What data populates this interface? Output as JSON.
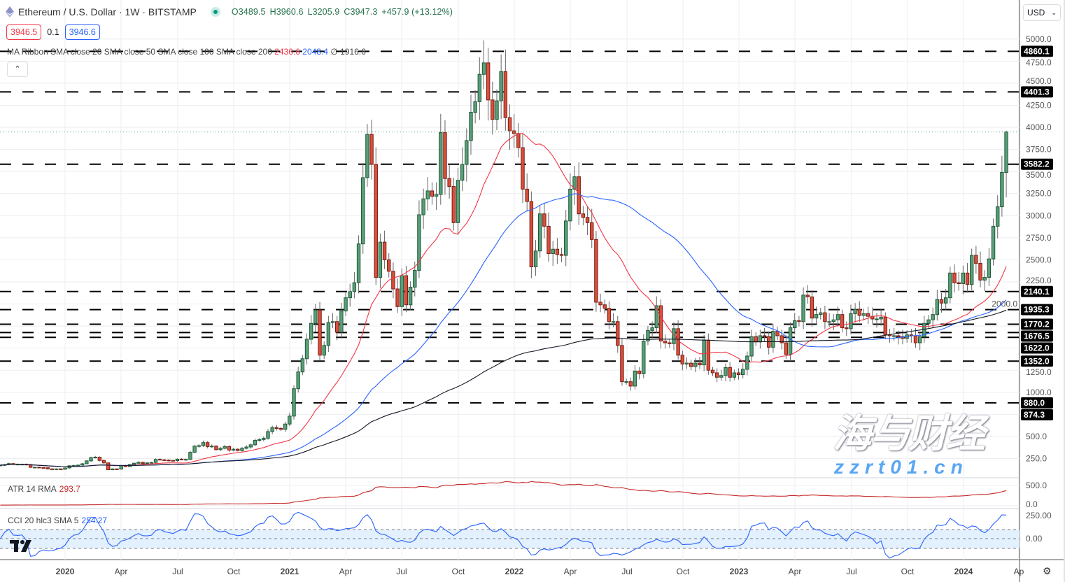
{
  "header": {
    "symbol_title": "Ethereum / U.S. Dollar · 1W · BITSTAMP",
    "open": "O3489.5",
    "high": "H3960.6",
    "low": "L3205.9",
    "close": "C3947.3",
    "change": "+457.9 (+13.12%)",
    "market_status_color": "#089981"
  },
  "quote": {
    "sell": "3946.5",
    "spread": "0.1",
    "buy": "3946.6"
  },
  "ribbon": {
    "label": "MA Ribbon SMA close 20 SMA close 50 SMA close 100 SMA close 200",
    "sma20": "2436.6",
    "sma50": "2048.4",
    "sma100": "∅",
    "sma200": "1916.6"
  },
  "currency": {
    "label": "USD",
    "icon": "chevron-down-icon"
  },
  "atr": {
    "label": "ATR 14 RMA",
    "value": "293.7"
  },
  "cci": {
    "label": "CCI 20 hlc3 SMA 5",
    "value": "254.27"
  },
  "watermark": {
    "cn": "海与财经",
    "site": "zzrt01.cn"
  },
  "colors": {
    "up": "#5b9e7a",
    "down": "#d9503c",
    "sma20": "#f23645",
    "sma50": "#2962ff",
    "sma200": "#131722",
    "atr": "#c62828",
    "cci": "#2962ff"
  },
  "chart_data": {
    "type": "candlestick",
    "interval": "1W",
    "first_week": "2019-09-23",
    "ylim": [
      0,
      5000
    ],
    "y_ticks": [
      5000,
      4750,
      4500,
      4250,
      4000,
      3750,
      3500,
      3250,
      3000,
      2750,
      2500,
      2250,
      2000,
      1250,
      1000,
      500,
      250
    ],
    "x_ticks": [
      "2020",
      "Apr",
      "Jul",
      "Oct",
      "2021",
      "Apr",
      "Jul",
      "Oct",
      "2022",
      "Apr",
      "Jul",
      "Oct",
      "2023",
      "Apr",
      "Jul",
      "Oct",
      "2024",
      "Ap"
    ],
    "levels": [
      "4860.1",
      "4401.3",
      "3582.2",
      "2140.1",
      "1935.3",
      "1770.2",
      "1676.5",
      "1622.0",
      "1352.0",
      "880.0"
    ],
    "extra_price_label": "874.3",
    "last_candle": {
      "open": 3489.5,
      "high": 3960.6,
      "low": 3205.9,
      "close": 3947.3
    },
    "closes": [
      175,
      180,
      192,
      182,
      185,
      185,
      180,
      150,
      151,
      147,
      145,
      132,
      128,
      132,
      128,
      143,
      167,
      170,
      175,
      190,
      223,
      260,
      265,
      228,
      200,
      123,
      132,
      130,
      170,
      158,
      182,
      196,
      207,
      192,
      200,
      205,
      240,
      235,
      231,
      228,
      225,
      242,
      239,
      240,
      320,
      390,
      395,
      430,
      385,
      390,
      350,
      365,
      385,
      345,
      355,
      340,
      365,
      380,
      405,
      455,
      465,
      480,
      555,
      600,
      590,
      580,
      640,
      730,
      1040,
      1230,
      1380,
      1600,
      1780,
      1930,
      1420,
      1530,
      1790,
      1800,
      1680,
      1920,
      2070,
      2140,
      2240,
      2680,
      3430,
      3920,
      3580,
      2300,
      2700,
      2500,
      2370,
      2170,
      1970,
      2320,
      1990,
      2190,
      2380,
      3010,
      3190,
      3280,
      3220,
      3240,
      3940,
      3420,
      3330,
      2920,
      3400,
      3580,
      3850,
      4170,
      4290,
      4600,
      4730,
      4310,
      4090,
      4300,
      4630,
      4110,
      3960,
      3930,
      3770,
      3300,
      3160,
      2420,
      2600,
      3020,
      2880,
      2570,
      2620,
      2560,
      2550,
      2940,
      3300,
      3440,
      3020,
      2980,
      2920,
      2730,
      2020,
      1990,
      1950,
      1800,
      1800,
      1530,
      1120,
      1120,
      1070,
      1240,
      1210,
      1580,
      1700,
      1730,
      1980,
      1580,
      1560,
      1550,
      1720,
      1420,
      1320,
      1330,
      1290,
      1330,
      1310,
      1590,
      1250,
      1220,
      1170,
      1190,
      1280,
      1170,
      1220,
      1200,
      1260,
      1410,
      1630,
      1570,
      1640,
      1630,
      1510,
      1690,
      1640,
      1560,
      1430,
      1730,
      1810,
      1800,
      2100,
      2080,
      1840,
      1880,
      1900,
      1800,
      1800,
      1820,
      1880,
      1730,
      1720,
      1890,
      1940,
      1870,
      1890,
      1860,
      1830,
      1830,
      1850,
      1650,
      1640,
      1640,
      1630,
      1610,
      1650,
      1640,
      1560,
      1630,
      1780,
      1820,
      1880,
      2050,
      2010,
      2070,
      2350,
      2240,
      2230,
      2350,
      2220,
      2550,
      2460,
      2270,
      2300,
      2510,
      2880,
      3100,
      3489.5,
      3947.3
    ]
  }
}
